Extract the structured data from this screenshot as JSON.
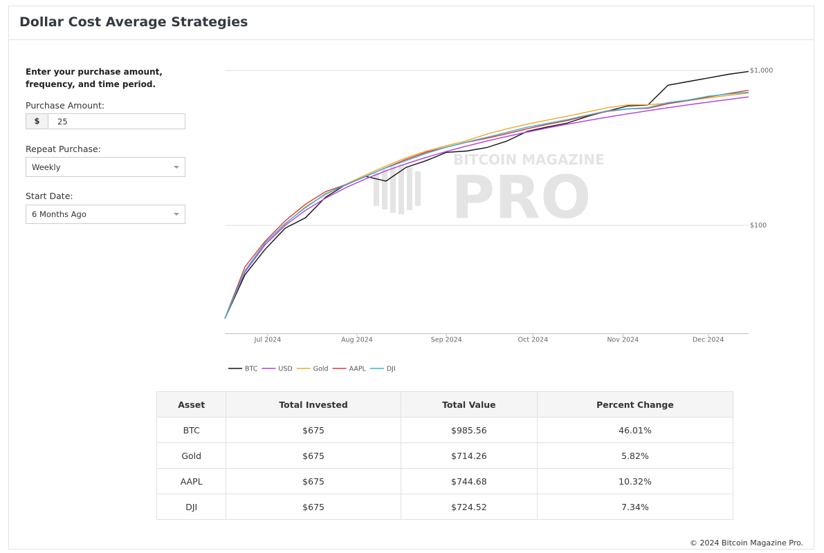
{
  "header": {
    "title": "Dollar Cost Average Strategies"
  },
  "form": {
    "instructions": "Enter your purchase amount, frequency, and time period.",
    "amount_label": "Purchase Amount:",
    "currency": "$",
    "amount": "25",
    "repeat_label": "Repeat Purchase:",
    "repeat": "Weekly",
    "start_label": "Start Date:",
    "start": "6 Months Ago"
  },
  "watermark": {
    "top": "BITCOIN MAGAZINE",
    "main": "PRO"
  },
  "chart_data": {
    "type": "line",
    "log_scale": true,
    "grid": true,
    "legend": "bottom-left",
    "x": [
      0,
      1,
      2,
      3,
      4,
      5,
      6,
      7,
      8,
      9,
      10,
      11,
      12,
      13,
      14,
      15,
      16,
      17,
      18,
      19,
      20,
      21,
      22,
      23,
      24,
      25,
      26
    ],
    "xlim": [
      0,
      26
    ],
    "xticks": [
      {
        "value": 2.13,
        "label": "Jul 2024"
      },
      {
        "value": 6.56,
        "label": "Aug 2024"
      },
      {
        "value": 11.0,
        "label": "Sep 2024"
      },
      {
        "value": 15.3,
        "label": "Oct 2024"
      },
      {
        "value": 19.76,
        "label": "Nov 2024"
      },
      {
        "value": 24.0,
        "label": "Dec 2024"
      }
    ],
    "ylim": [
      20,
      1000
    ],
    "yticks": [
      {
        "value": 100,
        "label": "$100"
      },
      {
        "value": 1000,
        "label": "$1,000"
      }
    ],
    "series": [
      {
        "name": "BTC",
        "color": "#111111",
        "values": [
          25,
          48,
          70,
          96,
          112,
          152,
          183,
          207,
          193,
          237,
          262,
          296,
          302,
          318,
          350,
          404,
          432,
          458,
          505,
          548,
          590,
          598,
          803,
          848,
          895,
          945,
          985.56
        ]
      },
      {
        "name": "USD",
        "color": "#b03ae0",
        "values": [
          25,
          50,
          75,
          100,
          125,
          150,
          175,
          200,
          225,
          250,
          275,
          300,
          325,
          350,
          375,
          400,
          425,
          450,
          475,
          500,
          525,
          550,
          575,
          600,
          625,
          650,
          675
        ]
      },
      {
        "name": "Gold",
        "color": "#f5a623",
        "values": [
          25,
          51,
          77,
          102,
          132,
          158,
          184,
          212,
          242,
          273,
          302,
          327,
          352,
          388,
          420,
          450,
          478,
          507,
          540,
          575,
          600,
          601,
          615,
          640,
          665,
          690,
          714.26
        ]
      },
      {
        "name": "AAPL",
        "color": "#e03535",
        "values": [
          25,
          54,
          79,
          107,
          137,
          165,
          183,
          207,
          236,
          267,
          297,
          320,
          344,
          365,
          390,
          420,
          448,
          475,
          510,
          545,
          565,
          570,
          610,
          640,
          675,
          710,
          744.68
        ]
      },
      {
        "name": "DJI",
        "color": "#2fb3d9",
        "values": [
          25,
          51,
          77,
          103,
          130,
          160,
          182,
          208,
          235,
          262,
          292,
          320,
          345,
          370,
          398,
          430,
          455,
          482,
          515,
          550,
          565,
          575,
          620,
          645,
          682,
          705,
          724.52
        ]
      }
    ]
  },
  "table": {
    "headers": [
      "Asset",
      "Total Invested",
      "Total Value",
      "Percent Change"
    ],
    "rows": [
      [
        "BTC",
        "$675",
        "$985.56",
        "46.01%"
      ],
      [
        "Gold",
        "$675",
        "$714.26",
        "5.82%"
      ],
      [
        "AAPL",
        "$675",
        "$744.68",
        "10.32%"
      ],
      [
        "DJI",
        "$675",
        "$724.52",
        "7.34%"
      ]
    ]
  },
  "footer": "© 2024 Bitcoin Magazine Pro."
}
